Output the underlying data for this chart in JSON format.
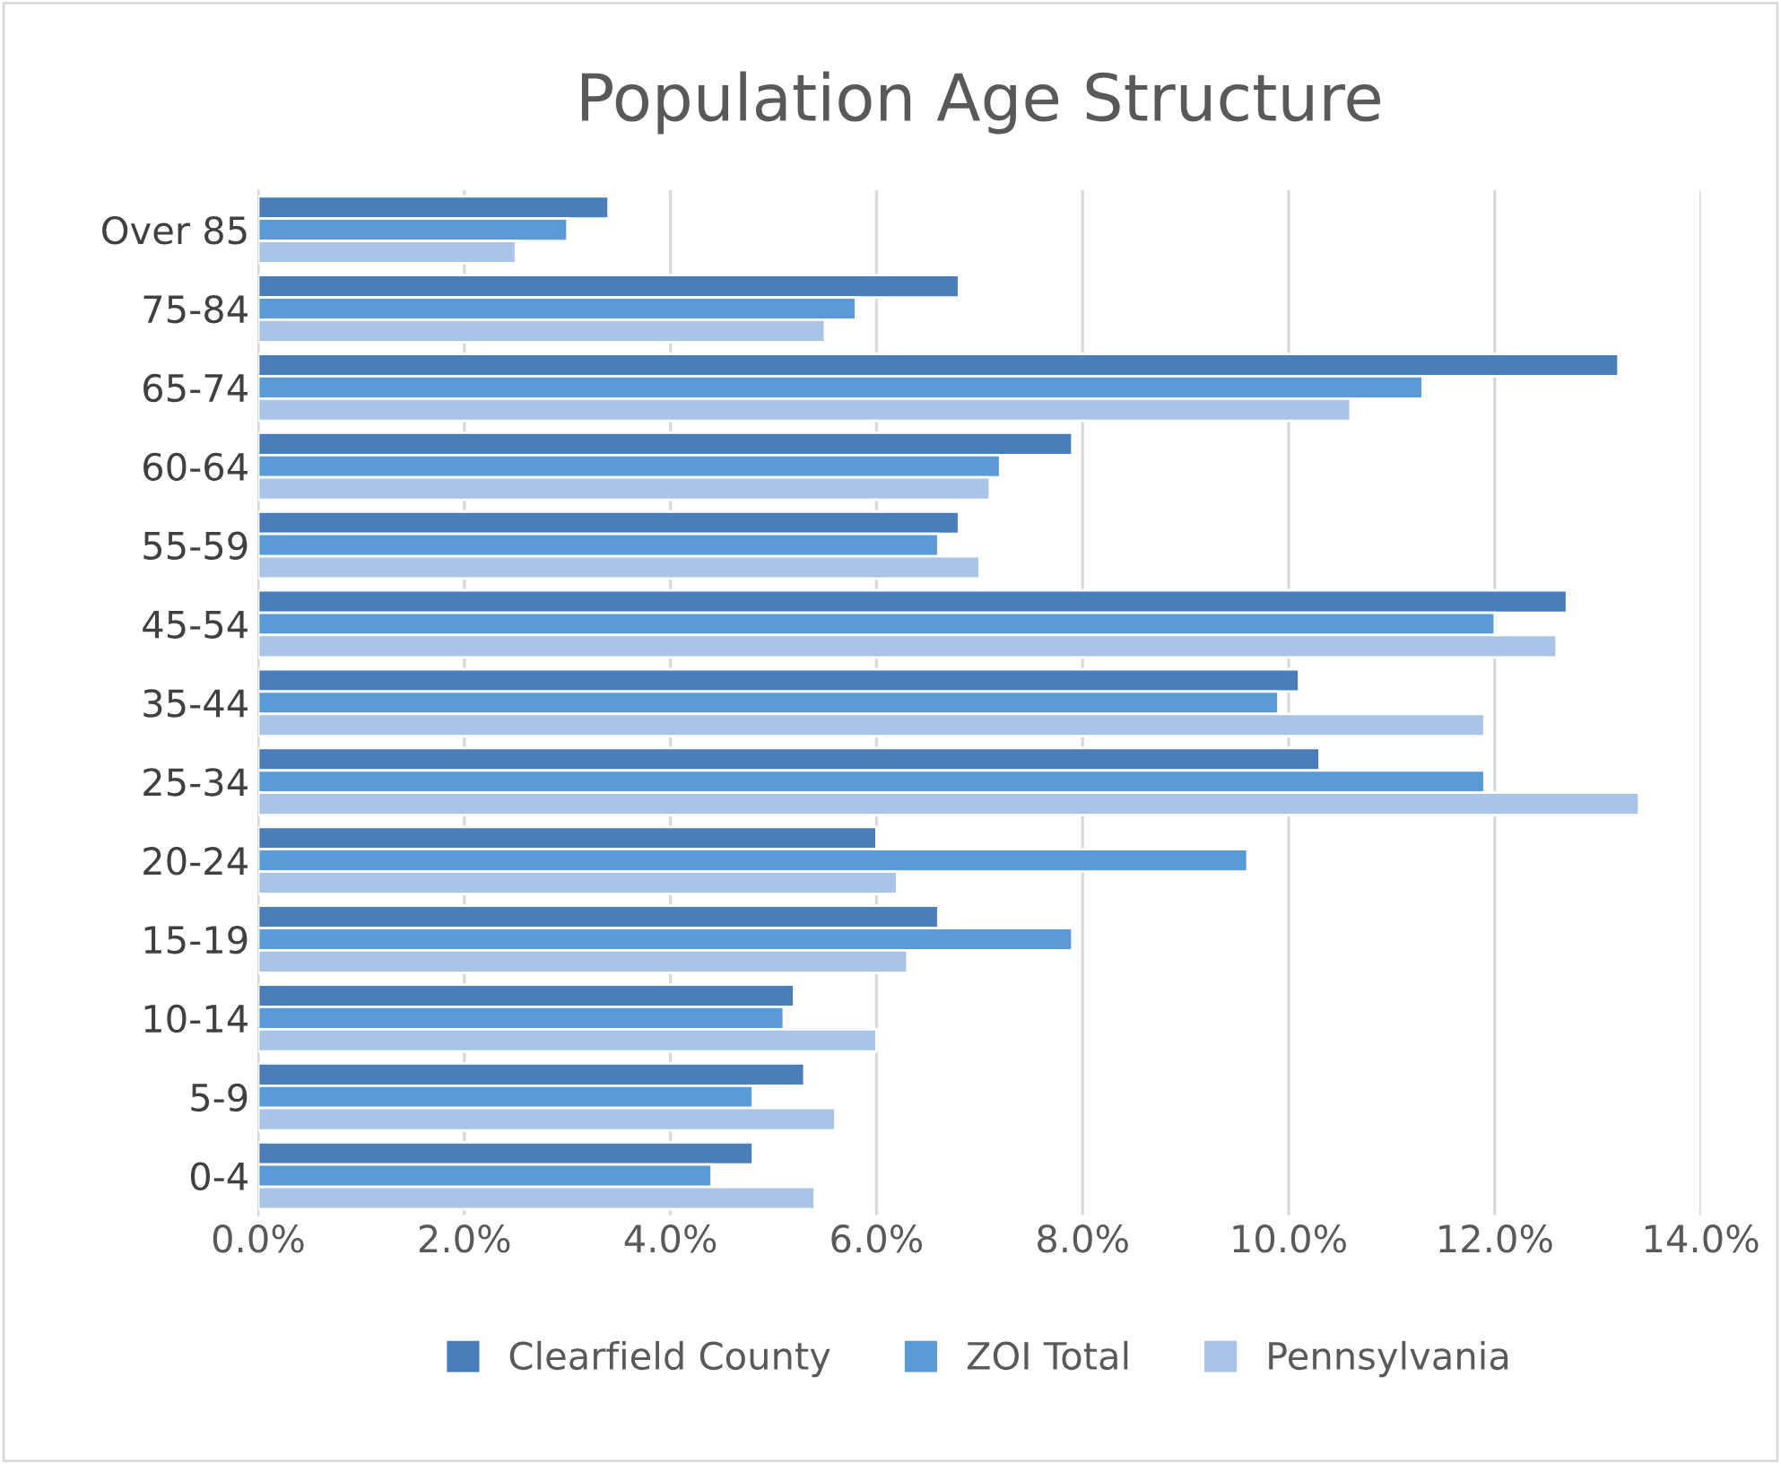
{
  "chart_data": {
    "type": "bar",
    "orientation": "horizontal",
    "title": "Population Age Structure",
    "categories": [
      "Over 85",
      "75-84",
      "65-74",
      "60-64",
      "55-59",
      "45-54",
      "35-44",
      "25-34",
      "20-24",
      "15-19",
      "10-14",
      "5-9",
      "0-4"
    ],
    "series": [
      {
        "name": "Clearfield County",
        "color": "#4a7ebb",
        "values": [
          3.4,
          6.8,
          13.2,
          7.9,
          6.8,
          12.7,
          10.1,
          10.3,
          6.0,
          6.6,
          5.2,
          5.3,
          4.8
        ]
      },
      {
        "name": "ZOI Total",
        "color": "#5b9bd5",
        "values": [
          3.0,
          5.8,
          11.3,
          7.2,
          6.6,
          12.0,
          9.9,
          11.9,
          9.6,
          7.9,
          5.1,
          4.8,
          4.4
        ]
      },
      {
        "name": "Pennsylvania",
        "color": "#a9c4e6",
        "values": [
          2.5,
          5.5,
          10.6,
          7.1,
          7.0,
          12.6,
          11.9,
          13.4,
          6.2,
          6.3,
          6.0,
          5.6,
          5.4
        ]
      }
    ],
    "xlim": [
      0,
      14
    ],
    "xticks": [
      {
        "value": 0,
        "label": "0.0%"
      },
      {
        "value": 2,
        "label": "2.0%"
      },
      {
        "value": 4,
        "label": "4.0%"
      },
      {
        "value": 6,
        "label": "6.0%"
      },
      {
        "value": 8,
        "label": "8.0%"
      },
      {
        "value": 10,
        "label": "10.0%"
      },
      {
        "value": 12,
        "label": "12.0%"
      },
      {
        "value": 14,
        "label": "14.0%"
      }
    ],
    "grid": "x",
    "legend": "bottom"
  }
}
